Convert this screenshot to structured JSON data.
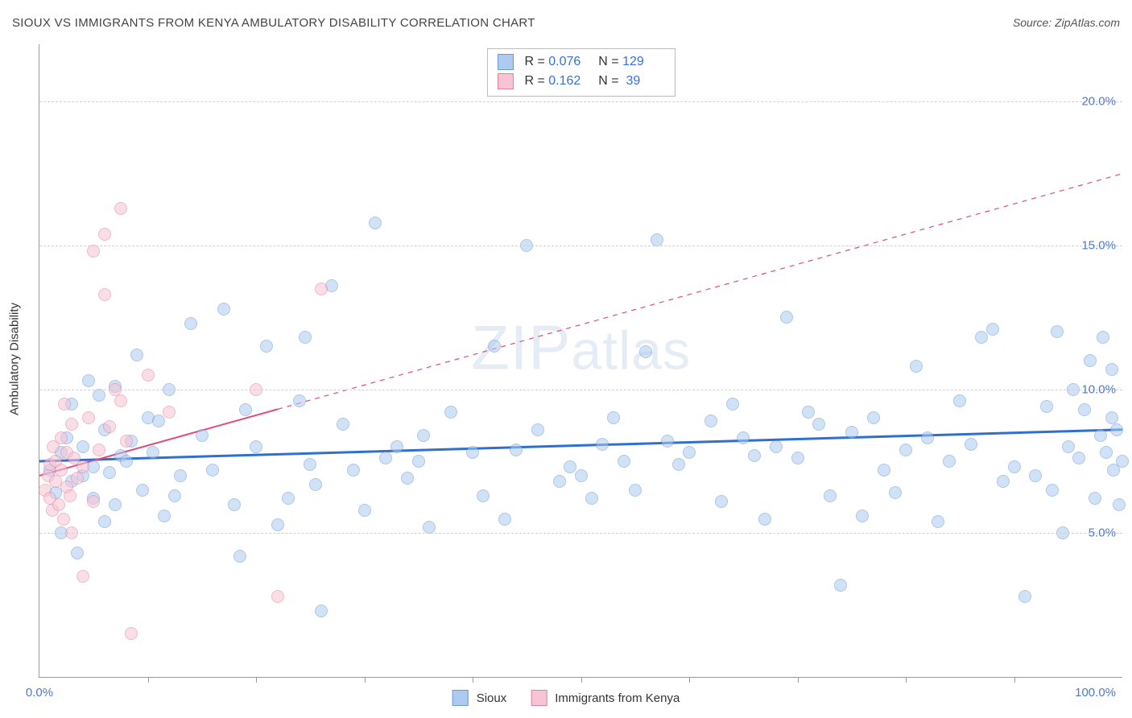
{
  "title": "SIOUX VS IMMIGRANTS FROM KENYA AMBULATORY DISABILITY CORRELATION CHART",
  "source": "Source: ZipAtlas.com",
  "ylabel": "Ambulatory Disability",
  "watermark": "ZIPatlas",
  "chart": {
    "type": "scatter",
    "background_color": "#ffffff",
    "grid_color": "#d0d0d0",
    "xlim": [
      0,
      100
    ],
    "ylim": [
      0,
      22
    ],
    "x_tick_label_left": "0.0%",
    "x_tick_label_right": "100.0%",
    "x_tick_positions": [
      10,
      20,
      30,
      40,
      50,
      60,
      70,
      80,
      90
    ],
    "y_gridlines": [
      {
        "v": 5,
        "label": "5.0%"
      },
      {
        "v": 10,
        "label": "10.0%"
      },
      {
        "v": 15,
        "label": "15.0%"
      },
      {
        "v": 20,
        "label": "20.0%"
      }
    ],
    "marker_radius": 8,
    "marker_opacity": 0.55,
    "series": [
      {
        "name": "Sioux",
        "fill": "#aecbef",
        "stroke": "#6a9ad8",
        "trend_color": "#2f6fd0",
        "trend_width": 3,
        "trend_start": {
          "x": 0,
          "y": 7.5
        },
        "trend_end": {
          "x": 100,
          "y": 8.6
        },
        "trend_dashed_from_x": null,
        "R": "0.076",
        "N": "129",
        "points": [
          [
            1,
            7.2
          ],
          [
            1.5,
            6.4
          ],
          [
            2,
            7.8
          ],
          [
            2,
            5.0
          ],
          [
            2.5,
            8.3
          ],
          [
            3,
            6.8
          ],
          [
            3,
            9.5
          ],
          [
            3.5,
            4.3
          ],
          [
            4,
            7.0
          ],
          [
            4,
            8.0
          ],
          [
            4.5,
            10.3
          ],
          [
            5,
            6.2
          ],
          [
            5,
            7.3
          ],
          [
            5.5,
            9.8
          ],
          [
            6,
            5.4
          ],
          [
            6,
            8.6
          ],
          [
            6.5,
            7.1
          ],
          [
            7,
            6.0
          ],
          [
            7,
            10.1
          ],
          [
            7.5,
            7.7
          ],
          [
            8,
            7.5
          ],
          [
            8.5,
            8.2
          ],
          [
            9,
            11.2
          ],
          [
            9.5,
            6.5
          ],
          [
            10,
            9.0
          ],
          [
            10.5,
            7.8
          ],
          [
            11,
            8.9
          ],
          [
            11.5,
            5.6
          ],
          [
            12,
            10.0
          ],
          [
            12.5,
            6.3
          ],
          [
            13,
            7.0
          ],
          [
            14,
            12.3
          ],
          [
            15,
            8.4
          ],
          [
            16,
            7.2
          ],
          [
            17,
            12.8
          ],
          [
            18,
            6.0
          ],
          [
            18.5,
            4.2
          ],
          [
            19,
            9.3
          ],
          [
            20,
            8.0
          ],
          [
            21,
            11.5
          ],
          [
            22,
            5.3
          ],
          [
            23,
            6.2
          ],
          [
            24,
            9.6
          ],
          [
            24.5,
            11.8
          ],
          [
            25,
            7.4
          ],
          [
            25.5,
            6.7
          ],
          [
            26,
            2.3
          ],
          [
            27,
            13.6
          ],
          [
            28,
            8.8
          ],
          [
            29,
            7.2
          ],
          [
            30,
            5.8
          ],
          [
            31,
            15.8
          ],
          [
            32,
            7.6
          ],
          [
            33,
            8.0
          ],
          [
            34,
            6.9
          ],
          [
            35,
            7.5
          ],
          [
            35.5,
            8.4
          ],
          [
            36,
            5.2
          ],
          [
            38,
            9.2
          ],
          [
            40,
            7.8
          ],
          [
            41,
            6.3
          ],
          [
            42,
            11.5
          ],
          [
            43,
            5.5
          ],
          [
            44,
            7.9
          ],
          [
            45,
            15.0
          ],
          [
            46,
            8.6
          ],
          [
            48,
            6.8
          ],
          [
            49,
            7.3
          ],
          [
            50,
            7.0
          ],
          [
            51,
            6.2
          ],
          [
            52,
            8.1
          ],
          [
            53,
            9.0
          ],
          [
            54,
            7.5
          ],
          [
            55,
            6.5
          ],
          [
            56,
            11.3
          ],
          [
            57,
            15.2
          ],
          [
            58,
            8.2
          ],
          [
            59,
            7.4
          ],
          [
            60,
            7.8
          ],
          [
            62,
            8.9
          ],
          [
            63,
            6.1
          ],
          [
            64,
            9.5
          ],
          [
            65,
            8.3
          ],
          [
            66,
            7.7
          ],
          [
            67,
            5.5
          ],
          [
            68,
            8.0
          ],
          [
            69,
            12.5
          ],
          [
            70,
            7.6
          ],
          [
            71,
            9.2
          ],
          [
            72,
            8.8
          ],
          [
            73,
            6.3
          ],
          [
            74,
            3.2
          ],
          [
            75,
            8.5
          ],
          [
            76,
            5.6
          ],
          [
            77,
            9.0
          ],
          [
            78,
            7.2
          ],
          [
            79,
            6.4
          ],
          [
            80,
            7.9
          ],
          [
            81,
            10.8
          ],
          [
            82,
            8.3
          ],
          [
            83,
            5.4
          ],
          [
            84,
            7.5
          ],
          [
            85,
            9.6
          ],
          [
            86,
            8.1
          ],
          [
            87,
            11.8
          ],
          [
            88,
            12.1
          ],
          [
            89,
            6.8
          ],
          [
            90,
            7.3
          ],
          [
            91,
            2.8
          ],
          [
            92,
            7.0
          ],
          [
            93,
            9.4
          ],
          [
            93.5,
            6.5
          ],
          [
            94,
            12.0
          ],
          [
            94.5,
            5.0
          ],
          [
            95,
            8.0
          ],
          [
            95.5,
            10.0
          ],
          [
            96,
            7.6
          ],
          [
            96.5,
            9.3
          ],
          [
            97,
            11.0
          ],
          [
            97.5,
            6.2
          ],
          [
            98,
            8.4
          ],
          [
            98.2,
            11.8
          ],
          [
            98.5,
            7.8
          ],
          [
            99,
            9.0
          ],
          [
            99,
            10.7
          ],
          [
            99.2,
            7.2
          ],
          [
            99.5,
            8.6
          ],
          [
            99.7,
            6.0
          ],
          [
            100,
            7.5
          ]
        ]
      },
      {
        "name": "Immigrants from Kenya",
        "fill": "#f6c4d3",
        "stroke": "#e77fa3",
        "trend_color": "#e04c7f",
        "trend_width": 2,
        "trend_start": {
          "x": 0,
          "y": 7.0
        },
        "trend_end": {
          "x": 100,
          "y": 17.5
        },
        "trend_dashed_from_x": 22,
        "R": "0.162",
        "N": "39",
        "points": [
          [
            0.5,
            6.5
          ],
          [
            0.8,
            7.0
          ],
          [
            1,
            6.2
          ],
          [
            1,
            7.4
          ],
          [
            1.2,
            5.8
          ],
          [
            1.3,
            8.0
          ],
          [
            1.5,
            6.8
          ],
          [
            1.5,
            7.5
          ],
          [
            1.8,
            6.0
          ],
          [
            2,
            7.2
          ],
          [
            2,
            8.3
          ],
          [
            2.2,
            5.5
          ],
          [
            2.3,
            9.5
          ],
          [
            2.5,
            6.6
          ],
          [
            2.5,
            7.8
          ],
          [
            2.8,
            6.3
          ],
          [
            3,
            5.0
          ],
          [
            3,
            8.8
          ],
          [
            3.2,
            7.6
          ],
          [
            3.5,
            6.9
          ],
          [
            4,
            7.3
          ],
          [
            4,
            3.5
          ],
          [
            4.5,
            9.0
          ],
          [
            5,
            6.1
          ],
          [
            5,
            14.8
          ],
          [
            5.5,
            7.9
          ],
          [
            6,
            13.3
          ],
          [
            6,
            15.4
          ],
          [
            6.5,
            8.7
          ],
          [
            7,
            10.0
          ],
          [
            7.5,
            9.6
          ],
          [
            7.5,
            16.3
          ],
          [
            8,
            8.2
          ],
          [
            8.5,
            1.5
          ],
          [
            10,
            10.5
          ],
          [
            12,
            9.2
          ],
          [
            20,
            10.0
          ],
          [
            22,
            2.8
          ],
          [
            26,
            13.5
          ]
        ]
      }
    ]
  },
  "series_legend": {
    "label1": "Sioux",
    "label2": "Immigrants from Kenya"
  }
}
